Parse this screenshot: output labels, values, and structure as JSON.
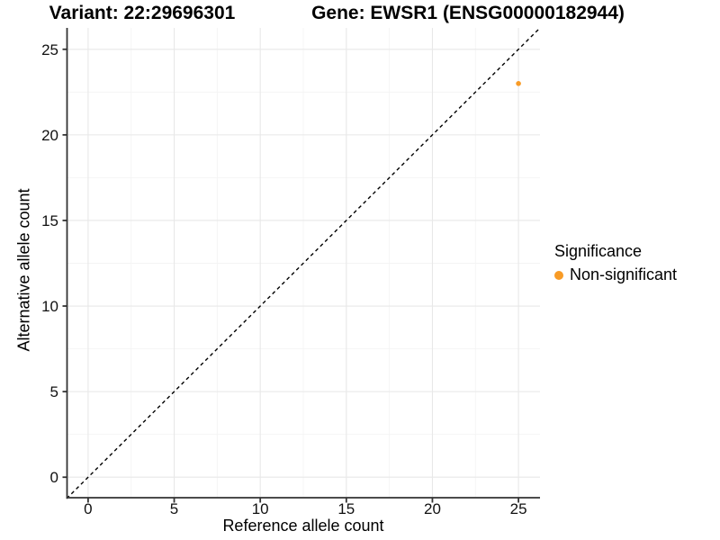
{
  "chart_data": {
    "type": "scatter",
    "titles": {
      "left": "Variant: 22:29696301",
      "right": "Gene: EWSR1 (ENSG00000182944)"
    },
    "xlabel": "Reference allele count",
    "ylabel": "Alternative allele count",
    "xlim": [
      -1.25,
      26.25
    ],
    "ylim": [
      -1.25,
      26.25
    ],
    "x_ticks": [
      0,
      5,
      10,
      15,
      20,
      25
    ],
    "y_ticks": [
      0,
      5,
      10,
      15,
      20,
      25
    ],
    "x_minor_ticks": [
      2.5,
      7.5,
      12.5,
      17.5,
      22.5
    ],
    "y_minor_ticks": [
      2.5,
      7.5,
      12.5,
      17.5,
      22.5
    ],
    "grid": true,
    "series": [
      {
        "name": "Non-significant",
        "color": "#F89B26",
        "points": [
          {
            "x": 25,
            "y": 23
          }
        ]
      }
    ],
    "reference_line": {
      "type": "identity",
      "slope": 1,
      "intercept": 0,
      "style": "dashed",
      "color": "#000000"
    },
    "legend": {
      "title": "Significance",
      "position": "right",
      "items": [
        {
          "label": "Non-significant",
          "color": "#F89B26"
        }
      ]
    }
  },
  "colors": {
    "background": "#FFFFFF",
    "grid_major": "#E8E8E8",
    "grid_minor": "#F4F4F4",
    "axis_line": "#333333",
    "tick_mark": "#333333",
    "tick_label": "#111111"
  }
}
